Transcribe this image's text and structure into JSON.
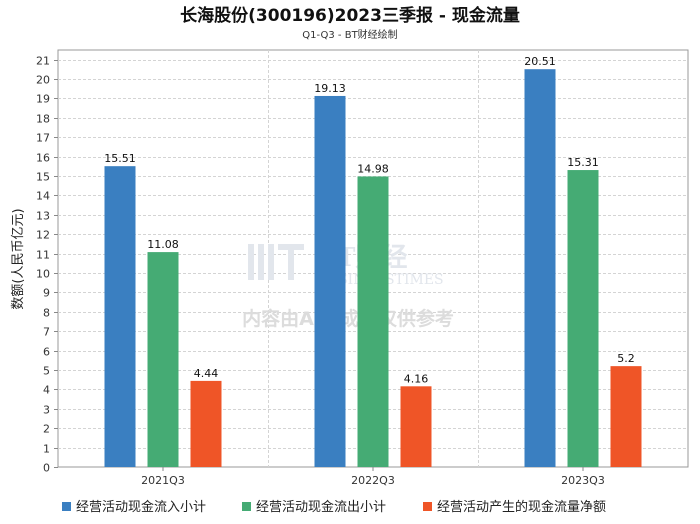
{
  "chart_data": {
    "type": "bar",
    "title": "长海股份(300196)2023三季报 - 现金流量",
    "subtitle": "Q1-Q3 - BT财经绘制",
    "ylabel": "数额(人民币亿元)",
    "xlabel": "",
    "ylim": [
      0,
      21.5
    ],
    "yticks": [
      0,
      1,
      2,
      3,
      4,
      5,
      6,
      7,
      8,
      9,
      10,
      11,
      12,
      13,
      14,
      15,
      16,
      17,
      18,
      19,
      20,
      21
    ],
    "grid": true,
    "legend_position": "bottom",
    "categories": [
      "2021Q3",
      "2022Q3",
      "2023Q3"
    ],
    "series": [
      {
        "name": "经营活动现金流入小计",
        "color": "#3a7fc1",
        "values": [
          15.51,
          19.13,
          20.51
        ],
        "labels": [
          "15.51",
          "19.13",
          "20.51"
        ]
      },
      {
        "name": "经营活动现金流出小计",
        "color": "#45ab74",
        "values": [
          11.08,
          14.98,
          15.31
        ],
        "labels": [
          "11.08",
          "14.98",
          "15.31"
        ]
      },
      {
        "name": "经营活动产生的现金流量净额",
        "color": "#ef5527",
        "values": [
          4.44,
          4.16,
          5.2
        ],
        "labels": [
          "4.44",
          "4.16",
          "5.2"
        ]
      }
    ]
  },
  "watermark": {
    "brand": "BT财经",
    "brand_sub": "BUSINESSTIMES",
    "note": "内容由AI生成，仅供参考"
  }
}
